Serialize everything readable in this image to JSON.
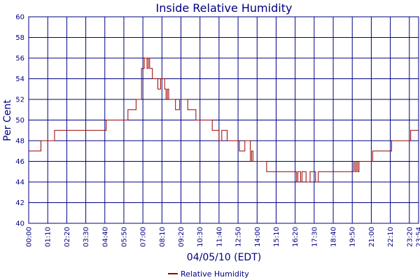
{
  "chart_data": {
    "type": "line",
    "title": "Inside Relative Humidity",
    "xlabel": "04/05/10 (EDT)",
    "ylabel": "Per Cent",
    "ylim": [
      40,
      60
    ],
    "yticks": [
      40,
      42,
      44,
      46,
      48,
      50,
      52,
      54,
      56,
      58,
      60
    ],
    "xlim": [
      "00:00",
      "23:54"
    ],
    "xticks": [
      "00:00",
      "01:10",
      "02:20",
      "03:30",
      "04:40",
      "05:50",
      "07:00",
      "08:10",
      "09:20",
      "10:30",
      "11:40",
      "12:50",
      "14:00",
      "15:10",
      "16:20",
      "17:30",
      "18:40",
      "19:50",
      "21:00",
      "22:10",
      "23:20",
      "23:54"
    ],
    "grid": true,
    "legend": "bottom",
    "colors": {
      "line": "#990000",
      "grid": "#000080",
      "text": "#000080"
    },
    "series": [
      {
        "name": "Relative Humidity",
        "x": [
          "00:00",
          "00:40",
          "00:45",
          "01:30",
          "01:35",
          "04:40",
          "04:45",
          "06:00",
          "06:05",
          "06:30",
          "06:35",
          "06:50",
          "06:55",
          "07:00",
          "07:05",
          "07:10",
          "07:15",
          "07:20",
          "07:25",
          "07:30",
          "07:35",
          "07:50",
          "07:55",
          "08:00",
          "08:05",
          "08:20",
          "08:25",
          "08:30",
          "08:35",
          "08:50",
          "09:00",
          "09:10",
          "09:15",
          "09:45",
          "10:00",
          "10:15",
          "10:40",
          "11:10",
          "11:15",
          "11:30",
          "11:40",
          "11:45",
          "11:50",
          "12:00",
          "12:10",
          "12:50",
          "12:55",
          "13:10",
          "13:15",
          "13:30",
          "13:35",
          "13:40",
          "13:45",
          "13:55",
          "14:00",
          "14:30",
          "14:35",
          "16:20",
          "16:25",
          "16:30",
          "16:35",
          "16:40",
          "16:45",
          "16:55",
          "17:00",
          "17:10",
          "17:15",
          "17:30",
          "17:35",
          "17:40",
          "17:45",
          "19:50",
          "19:55",
          "20:00",
          "20:05",
          "20:10",
          "20:15",
          "20:30",
          "20:35",
          "21:00",
          "21:05",
          "21:30",
          "21:35",
          "22:10",
          "22:15",
          "23:20",
          "23:25",
          "23:54"
        ],
        "values": [
          47,
          47,
          48,
          48,
          49,
          49,
          50,
          50,
          51,
          51,
          52,
          52,
          55,
          55,
          56,
          56,
          55,
          56,
          55,
          55,
          54,
          54,
          53,
          53,
          54,
          53,
          52,
          53,
          52,
          52,
          51,
          51,
          52,
          51,
          51,
          50,
          50,
          50,
          49,
          49,
          48,
          48,
          49,
          49,
          48,
          48,
          47,
          47,
          48,
          48,
          46,
          47,
          46,
          46,
          46,
          46,
          45,
          45,
          44,
          45,
          45,
          44,
          45,
          45,
          44,
          44,
          45,
          45,
          44,
          44,
          45,
          45,
          46,
          45,
          46,
          45,
          46,
          46,
          46,
          46,
          47,
          47,
          47,
          47,
          48,
          48,
          49,
          49
        ]
      }
    ]
  }
}
